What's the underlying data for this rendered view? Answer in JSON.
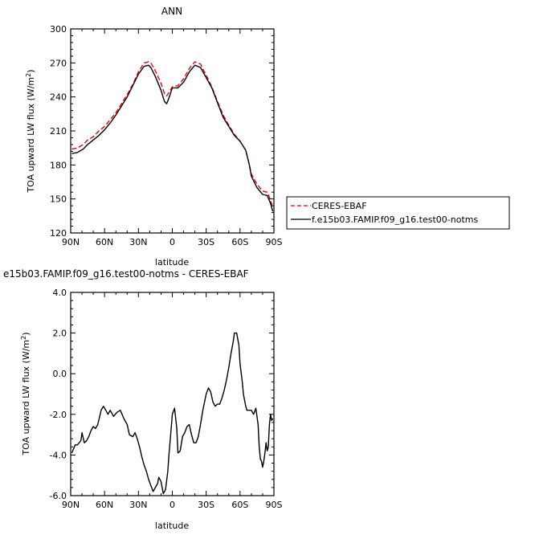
{
  "chart_data": [
    {
      "type": "line",
      "title": "ANN",
      "xlabel": "latitude",
      "ylabel": "TOA upward LW flux (W/m²)",
      "ylabel_base": "TOA upward LW flux (W/m",
      "ylabel_sup": "2",
      "ylabel_end": ")",
      "xlim": [
        90,
        -90
      ],
      "ylim": [
        120,
        300
      ],
      "x_tick_values": [
        90,
        60,
        30,
        0,
        -30,
        -60,
        -90
      ],
      "x_tick_labels": [
        "90N",
        "60N",
        "30N",
        "0",
        "30S",
        "60S",
        "90S"
      ],
      "y_tick_values": [
        120,
        150,
        180,
        210,
        240,
        270,
        300
      ],
      "y_tick_labels": [
        "120",
        "150",
        "180",
        "210",
        "240",
        "270",
        "300"
      ],
      "legend_position": "right",
      "series": [
        {
          "name": "CERES-EBAF",
          "color": "#e8000b",
          "dash": "dashed",
          "x": [
            89,
            84,
            79,
            75,
            70,
            65,
            60,
            55,
            50,
            45,
            40,
            35,
            30,
            25,
            21,
            19,
            15,
            10,
            7,
            5,
            3,
            0,
            -5,
            -10,
            -15,
            -20,
            -25,
            -30,
            -35,
            -40,
            -45,
            -50,
            -55,
            -60,
            -65,
            -68,
            -70,
            -75,
            -80,
            -84,
            -87,
            -89
          ],
          "y": [
            194,
            195,
            198,
            202,
            205,
            210,
            214,
            220,
            226,
            234,
            242,
            251,
            262,
            270,
            271,
            270,
            263,
            252,
            243,
            241,
            244,
            249,
            250,
            256,
            265,
            271,
            269,
            259,
            249,
            236,
            224,
            215,
            207,
            201,
            193,
            181,
            172,
            163,
            157,
            156,
            149,
            142
          ]
        },
        {
          "name": "f.e15b03.FAMIP.f09_g16.test00-notms",
          "color": "#000000",
          "dash": "solid",
          "x": [
            89,
            84,
            79,
            75,
            70,
            65,
            60,
            55,
            50,
            45,
            40,
            35,
            30,
            25,
            21,
            19,
            15,
            10,
            7,
            5,
            3,
            0,
            -5,
            -10,
            -15,
            -20,
            -25,
            -30,
            -35,
            -40,
            -45,
            -50,
            -55,
            -60,
            -65,
            -68,
            -70,
            -75,
            -80,
            -84,
            -87,
            -89
          ],
          "y": [
            190,
            191,
            194,
            198,
            202,
            206,
            211,
            217,
            224,
            232,
            240,
            250,
            260,
            267,
            268,
            266,
            258,
            246,
            236,
            234,
            239,
            248,
            248,
            253,
            262,
            268,
            266,
            257,
            248,
            235,
            222,
            214,
            206,
            201,
            193,
            181,
            170,
            160,
            154,
            153,
            146,
            139
          ]
        }
      ]
    },
    {
      "type": "line",
      "title": "e15b03.FAMIP.f09_g16.test00-notms  -  CERES-EBAF",
      "xlabel": "latitude",
      "ylabel": "TOA upward LW flux (W/m²)",
      "ylabel_base": "TOA upward LW flux (W/m",
      "ylabel_sup": "2",
      "ylabel_end": ")",
      "xlim": [
        90,
        -90
      ],
      "ylim": [
        -6.0,
        4.0
      ],
      "x_tick_values": [
        90,
        60,
        30,
        0,
        -30,
        -60,
        -90
      ],
      "x_tick_labels": [
        "90N",
        "60N",
        "30N",
        "0",
        "30S",
        "60S",
        "90S"
      ],
      "y_tick_values": [
        -6.0,
        -4.0,
        -2.0,
        0.0,
        2.0,
        4.0
      ],
      "y_tick_labels": [
        "-6.0",
        "-4.0",
        "-2.0",
        "0.0",
        "2.0",
        "4.0"
      ],
      "series": [
        {
          "color": "#000000",
          "x": [
            89,
            86,
            84,
            81,
            80,
            78,
            76,
            74,
            72,
            70,
            68,
            66,
            63,
            61,
            59,
            57,
            55,
            52,
            49,
            46,
            43,
            40,
            38,
            35,
            33,
            31,
            29,
            27,
            25,
            23,
            21,
            19,
            17,
            15,
            13,
            12,
            10,
            8,
            6,
            4,
            3,
            1,
            0,
            -2,
            -4,
            -5,
            -7,
            -9,
            -11,
            -13,
            -15,
            -17,
            -19,
            -21,
            -23,
            -25,
            -27,
            -30,
            -32,
            -34,
            -36,
            -38,
            -40,
            -42,
            -44,
            -46,
            -48,
            -50,
            -52,
            -54,
            -55,
            -57,
            -59,
            -60,
            -62,
            -63,
            -65,
            -66,
            -68,
            -70,
            -72,
            -74,
            -76,
            -77,
            -78,
            -79,
            -80,
            -81,
            -82,
            -83,
            -84,
            -85,
            -86,
            -87,
            -88,
            -89
          ],
          "y": [
            -3.9,
            -3.5,
            -3.5,
            -3.3,
            -2.9,
            -3.4,
            -3.3,
            -3.1,
            -2.8,
            -2.6,
            -2.7,
            -2.5,
            -1.8,
            -1.6,
            -1.8,
            -2.0,
            -1.8,
            -2.1,
            -1.9,
            -1.8,
            -2.2,
            -2.5,
            -3.0,
            -3.1,
            -2.9,
            -3.2,
            -3.6,
            -4.1,
            -4.5,
            -4.8,
            -5.2,
            -5.5,
            -5.8,
            -5.6,
            -5.4,
            -5.1,
            -5.3,
            -5.9,
            -5.7,
            -4.8,
            -4.0,
            -2.7,
            -2.0,
            -1.7,
            -2.7,
            -3.9,
            -3.8,
            -3.1,
            -2.9,
            -2.6,
            -2.5,
            -3.0,
            -3.4,
            -3.4,
            -3.1,
            -2.5,
            -1.8,
            -1.0,
            -0.7,
            -0.9,
            -1.4,
            -1.6,
            -1.5,
            -1.5,
            -1.2,
            -0.8,
            -0.3,
            0.3,
            1.0,
            1.6,
            2.0,
            2.0,
            1.4,
            0.5,
            -0.4,
            -1.0,
            -1.6,
            -1.8,
            -1.8,
            -1.8,
            -2.0,
            -1.7,
            -2.5,
            -3.6,
            -4.2,
            -4.3,
            -4.6,
            -4.3,
            -3.9,
            -3.4,
            -3.8,
            -3.6,
            -2.5,
            -2.0,
            -2.3,
            -2.2
          ]
        }
      ]
    }
  ]
}
